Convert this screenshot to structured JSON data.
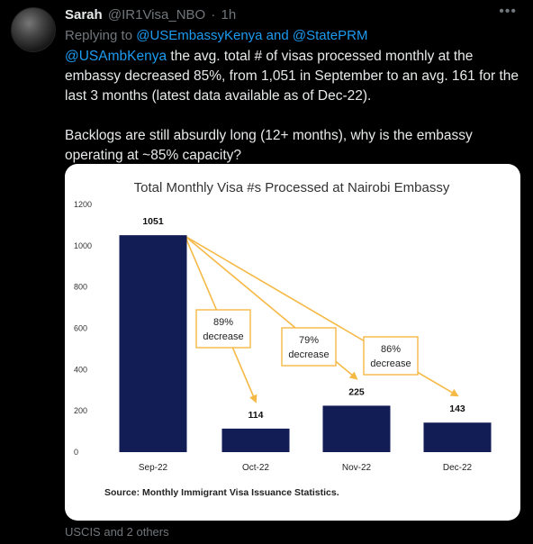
{
  "tweet": {
    "author_name": "Sarah",
    "author_handle": "@IR1Visa_NBO",
    "separator": "·",
    "time": "1h",
    "more_icon": "more-icon",
    "reply_prefix": "Replying to",
    "reply_to_1": "@USEmbassyKenya",
    "reply_and": "and",
    "reply_to_2": "@StatePRM",
    "mention": "@USAmbKenya",
    "text_p1": " the avg. total # of visas processed monthly at the embassy decreased 85%, from 1,051 in September to an avg. 161 for the last 3 months (latest data available as of Dec-22).",
    "text_p2": "Backlogs are still absurdly long (12+ months), why is the embassy operating at ~85% capacity?",
    "footer": "USCIS and 2 others"
  },
  "chart_data": {
    "type": "bar",
    "title": "Total Monthly Visa #s Processed at Nairobi Embassy",
    "categories": [
      "Sep-22",
      "Oct-22",
      "Nov-22",
      "Dec-22"
    ],
    "values": [
      1051,
      114,
      225,
      143
    ],
    "data_labels": [
      "1051",
      "114",
      "225",
      "143"
    ],
    "ylim": [
      0,
      1200
    ],
    "yticks": [
      0,
      200,
      400,
      600,
      800,
      1000,
      1200
    ],
    "bar_color": "#121c55",
    "annotation_color": "#f5b946",
    "annotations": [
      {
        "text_line1": "89%",
        "text_line2": "decrease",
        "from": "Sep-22",
        "to": "Oct-22"
      },
      {
        "text_line1": "79%",
        "text_line2": "decrease",
        "from": "Sep-22",
        "to": "Nov-22"
      },
      {
        "text_line1": "86%",
        "text_line2": "decrease",
        "from": "Sep-22",
        "to": "Dec-22"
      }
    ],
    "source": "Source: Monthly Immigrant Visa Issuance Statistics.",
    "grid": false
  }
}
